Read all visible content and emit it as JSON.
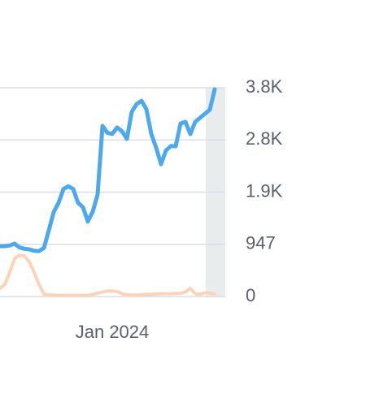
{
  "chart_data": {
    "type": "line",
    "categories": [
      null,
      null,
      null,
      null,
      null,
      null,
      null,
      null,
      null,
      null,
      null,
      null,
      null,
      null,
      null,
      null,
      null,
      null,
      null,
      null,
      null,
      null,
      null,
      "Jan 2024",
      null,
      null,
      null,
      null,
      null,
      null,
      null,
      null,
      null,
      null,
      null,
      null,
      null,
      null,
      null,
      null,
      null,
      null,
      null,
      null,
      null
    ],
    "series": [
      {
        "color": "#4ea8ec",
        "values": [
          914,
          914,
          925,
          958,
          890,
          865,
          855,
          830,
          825,
          880,
          1200,
          1530,
          1700,
          1950,
          2000,
          1950,
          1700,
          1620,
          1360,
          1540,
          1850,
          3095,
          2970,
          2950,
          3066,
          3000,
          2860,
          3350,
          3493,
          3550,
          3400,
          2950,
          2700,
          2400,
          2650,
          2730,
          2727,
          3140,
          3169,
          2948,
          3169,
          3243,
          3317,
          3390,
          3759
        ]
      },
      {
        "color": "#fdd3b8",
        "values": [
          147,
          220,
          440,
          690,
          750,
          737,
          630,
          440,
          220,
          44,
          30,
          25,
          20,
          20,
          20,
          20,
          20,
          20,
          20,
          40,
          60,
          80,
          100,
          100,
          90,
          50,
          30,
          25,
          25,
          30,
          40,
          40,
          45,
          50,
          50,
          50,
          55,
          60,
          80,
          150,
          50,
          40,
          70,
          60,
          50
        ]
      }
    ],
    "ylim": [
      0,
      3788
    ],
    "yticks": [
      0,
      947,
      {
        "value": 1894,
        "label": "1.9K"
      },
      {
        "value": 2841,
        "label": "2.8K"
      },
      {
        "value": 3788,
        "label": "3.8K"
      }
    ],
    "grid": true
  }
}
